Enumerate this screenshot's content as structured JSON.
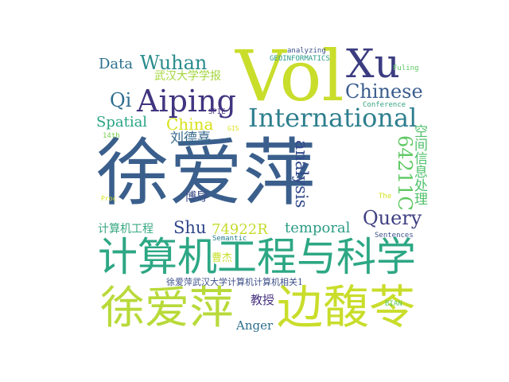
{
  "words": [
    {
      "text": "徐爱萍",
      "color": "#3b5f8c"
    },
    {
      "text": "Vol",
      "color": "#c9dd2b"
    },
    {
      "text": "计算机工程与科学",
      "color": "#2da784"
    },
    {
      "text": "徐爱萍",
      "color": "#b8da39"
    },
    {
      "text": "边馥苓",
      "color": "#c9dd2b"
    },
    {
      "text": "Xu",
      "color": "#3b3c80"
    },
    {
      "text": "Aiping",
      "color": "#403580"
    },
    {
      "text": "International",
      "color": "#2e7f8e"
    },
    {
      "text": "Chinese",
      "color": "#3a5d8e"
    },
    {
      "text": "Wuhan",
      "color": "#2a8c8c"
    },
    {
      "text": "Qi",
      "color": "#2e6e8e"
    },
    {
      "text": "Data",
      "color": "#2c708e"
    },
    {
      "text": "China",
      "color": "#d7e219"
    },
    {
      "text": "Spatial",
      "color": "#27a482"
    },
    {
      "text": "analysis",
      "color": "#344a8c"
    },
    {
      "text": "64211C",
      "color": "#5ec962"
    },
    {
      "text": "空间信息处理",
      "color": "#4fc16b"
    },
    {
      "text": "Query",
      "color": "#404183"
    },
    {
      "text": "temporal",
      "color": "#2b9c85"
    },
    {
      "text": "Shu",
      "color": "#31458a"
    },
    {
      "text": "74922R",
      "color": "#c6dc2d"
    },
    {
      "text": "武汉大学学报",
      "color": "#a4d63f"
    },
    {
      "text": "刘德喜",
      "color": "#36698c"
    },
    {
      "text": "博导",
      "color": "#3e5088"
    },
    {
      "text": "计算机工程",
      "color": "#39a882"
    },
    {
      "text": "曹杰",
      "color": "#c7df2a"
    },
    {
      "text": "徐爱萍武汉大学计算机计算机相关1",
      "color": "#3c4f8a"
    },
    {
      "text": "教授",
      "color": "#46307e"
    },
    {
      "text": "Anger",
      "color": "#2e6e8e"
    },
    {
      "text": "GEOINFORMATICS",
      "color": "#2a9a89"
    },
    {
      "text": "analyzing",
      "color": "#3b528b"
    },
    {
      "text": "Fuling",
      "color": "#5cc863"
    },
    {
      "text": "Conference",
      "color": "#36a284"
    },
    {
      "text": "SPIE",
      "color": "#46307e"
    },
    {
      "text": "GIS",
      "color": "#dce319"
    },
    {
      "text": "14th",
      "color": "#7ad151"
    },
    {
      "text": "Proc",
      "color": "#d8e319"
    },
    {
      "text": "Semantic",
      "color": "#27808e"
    },
    {
      "text": "The",
      "color": "#d2e21b"
    },
    {
      "text": "Sentences",
      "color": "#3b528b"
    },
    {
      "text": "BIAN",
      "color": "#5ec962"
    }
  ]
}
